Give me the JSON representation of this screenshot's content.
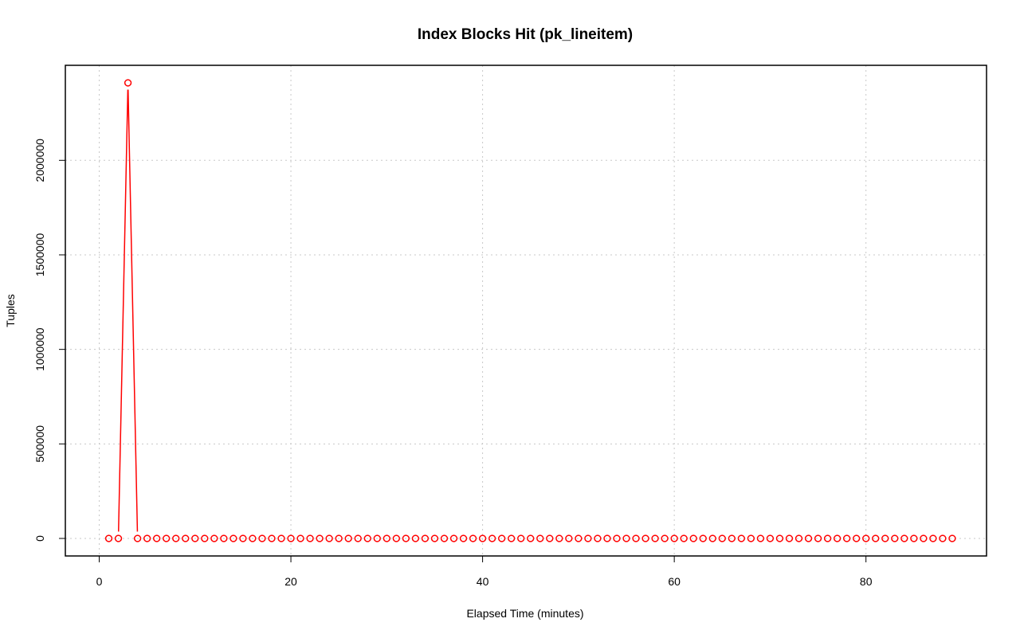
{
  "chart_data": {
    "type": "line",
    "title": "Index Blocks Hit (pk_lineitem)",
    "xlabel": "Elapsed Time (minutes)",
    "ylabel": "Tuples",
    "xlim": [
      0,
      92
    ],
    "ylim": [
      -90000,
      2500000
    ],
    "x_ticks": [
      0,
      20,
      40,
      60,
      80
    ],
    "y_ticks": [
      0,
      500000,
      1000000,
      1500000,
      2000000
    ],
    "x_tick_labels": [
      "0",
      "20",
      "40",
      "60",
      "80"
    ],
    "y_tick_labels": [
      "0",
      "500000",
      "1000000",
      "1500000",
      "2000000"
    ],
    "grid": true,
    "series": [
      {
        "color": "#ff0000",
        "markers": "open-circle",
        "x": [
          1,
          2,
          3,
          4,
          5,
          6,
          7,
          8,
          9,
          10,
          11,
          12,
          13,
          14,
          15,
          16,
          17,
          18,
          19,
          20,
          21,
          22,
          23,
          24,
          25,
          26,
          27,
          28,
          29,
          30,
          31,
          32,
          33,
          34,
          35,
          36,
          37,
          38,
          39,
          40,
          41,
          42,
          43,
          44,
          45,
          46,
          47,
          48,
          49,
          50,
          51,
          52,
          53,
          54,
          55,
          56,
          57,
          58,
          59,
          60,
          61,
          62,
          63,
          64,
          65,
          66,
          67,
          68,
          69,
          70,
          71,
          72,
          73,
          74,
          75,
          76,
          77,
          78,
          79,
          80,
          81,
          82,
          83,
          84,
          85,
          86,
          87,
          88,
          89
        ],
        "y": [
          0,
          0,
          2410000,
          0,
          0,
          0,
          0,
          0,
          0,
          0,
          0,
          0,
          0,
          0,
          0,
          0,
          0,
          0,
          0,
          0,
          0,
          0,
          0,
          0,
          0,
          0,
          0,
          0,
          0,
          0,
          0,
          0,
          0,
          0,
          0,
          0,
          0,
          0,
          0,
          0,
          0,
          0,
          0,
          0,
          0,
          0,
          0,
          0,
          0,
          0,
          0,
          0,
          0,
          0,
          0,
          0,
          0,
          0,
          0,
          0,
          0,
          0,
          0,
          0,
          0,
          0,
          0,
          0,
          0,
          0,
          0,
          0,
          0,
          0,
          0,
          0,
          0,
          0,
          0,
          0,
          0,
          0,
          0,
          0,
          0,
          0,
          0,
          0,
          0
        ]
      }
    ]
  }
}
